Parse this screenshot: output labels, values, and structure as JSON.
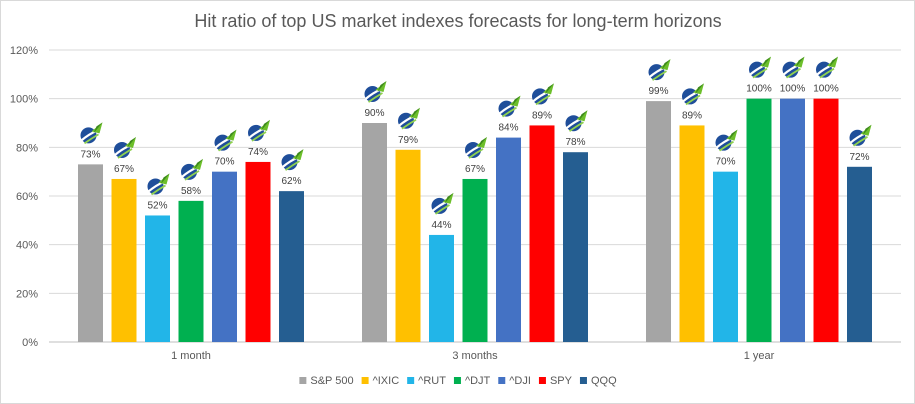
{
  "chart_data": {
    "type": "bar",
    "title": "Hit ratio of top US market indexes forecasts for long-term horizons",
    "categories": [
      "1 month",
      "3 months",
      "1 year"
    ],
    "series": [
      {
        "name": "S&P 500",
        "color": "#a5a5a5",
        "values": [
          73,
          90,
          99
        ]
      },
      {
        "name": "^IXIC",
        "color": "#ffc000",
        "values": [
          67,
          79,
          89
        ]
      },
      {
        "name": "^RUT",
        "color": "#22b5e8",
        "values": [
          52,
          44,
          70
        ]
      },
      {
        "name": "^DJT",
        "color": "#00b050",
        "values": [
          58,
          67,
          100
        ]
      },
      {
        "name": "^DJI",
        "color": "#4472c4",
        "values": [
          70,
          84,
          100
        ]
      },
      {
        "name": "SPY",
        "color": "#ff0000",
        "values": [
          74,
          89,
          100
        ]
      },
      {
        "name": "QQQ",
        "color": "#255e91",
        "values": [
          62,
          78,
          72
        ]
      }
    ],
    "ylim": [
      0,
      120
    ],
    "yticks": [
      "0%",
      "20%",
      "40%",
      "60%",
      "80%",
      "100%",
      "120%"
    ],
    "grid": true,
    "legend": "bottom",
    "data_label_suffix": "%",
    "bar_marker_icon": "rising-arrow-logo-icon"
  }
}
